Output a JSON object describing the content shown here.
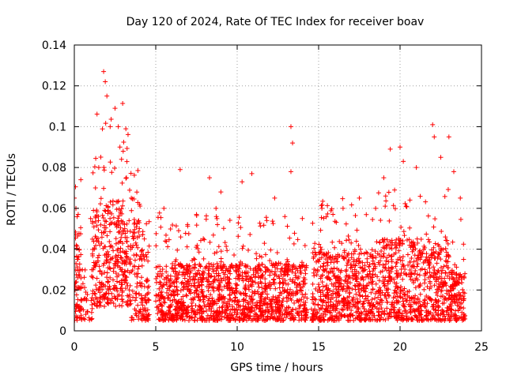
{
  "chart_data": {
    "type": "scatter",
    "title": "Day 120 of 2024, Rate Of TEC Index for receiver boav",
    "xlabel": "GPS time / hours",
    "ylabel": "ROTI / TECUs",
    "xlim": [
      0,
      25
    ],
    "ylim": [
      0,
      0.14
    ],
    "xticks": [
      0,
      5,
      10,
      15,
      20,
      25
    ],
    "xtick_labels": [
      "0",
      "5",
      "10",
      "15",
      "20",
      "25"
    ],
    "yticks": [
      0,
      0.02,
      0.04,
      0.06,
      0.08,
      0.1,
      0.12,
      0.14
    ],
    "ytick_labels": [
      "0",
      "0.02",
      "0.04",
      "0.06",
      "0.08",
      "0.1",
      "0.12",
      "0.14"
    ],
    "grid": true,
    "marker": "+",
    "marker_color": "#ff0000",
    "data_gap_hours": [
      4.6,
      5.0
    ],
    "series": [
      {
        "name": "ROTI",
        "description_points": "dense cloud; representative sampled envelope",
        "points": [
          [
            0.05,
            0.02
          ],
          [
            0.1,
            0.06
          ],
          [
            0.2,
            0.035
          ],
          [
            0.3,
            0.01
          ],
          [
            0.4,
            0.074
          ],
          [
            1.0,
            0.055
          ],
          [
            1.3,
            0.07
          ],
          [
            1.5,
            0.08
          ],
          [
            1.8,
            0.127
          ],
          [
            1.9,
            0.122
          ],
          [
            2.0,
            0.115
          ],
          [
            2.2,
            0.1
          ],
          [
            2.5,
            0.109
          ],
          [
            2.7,
            0.1
          ],
          [
            2.8,
            0.09
          ],
          [
            3.0,
            0.088
          ],
          [
            3.2,
            0.075
          ],
          [
            3.5,
            0.065
          ],
          [
            4.0,
            0.062
          ],
          [
            4.3,
            0.045
          ],
          [
            5.5,
            0.06
          ],
          [
            6.5,
            0.079
          ],
          [
            7.5,
            0.057
          ],
          [
            8.3,
            0.075
          ],
          [
            8.7,
            0.06
          ],
          [
            9.0,
            0.068
          ],
          [
            10.3,
            0.073
          ],
          [
            10.9,
            0.077
          ],
          [
            12.3,
            0.065
          ],
          [
            13.3,
            0.1
          ],
          [
            13.4,
            0.092
          ],
          [
            13.3,
            0.078
          ],
          [
            14.0,
            0.055
          ],
          [
            15.2,
            0.06
          ],
          [
            16.5,
            0.06
          ],
          [
            17.5,
            0.065
          ],
          [
            18.5,
            0.06
          ],
          [
            19.0,
            0.075
          ],
          [
            19.4,
            0.089
          ],
          [
            20.0,
            0.09
          ],
          [
            20.2,
            0.083
          ],
          [
            21.0,
            0.08
          ],
          [
            22.0,
            0.101
          ],
          [
            22.1,
            0.095
          ],
          [
            22.5,
            0.085
          ],
          [
            23.0,
            0.095
          ],
          [
            23.3,
            0.078
          ],
          [
            23.7,
            0.065
          ],
          [
            23.9,
            0.035
          ]
        ]
      }
    ]
  }
}
